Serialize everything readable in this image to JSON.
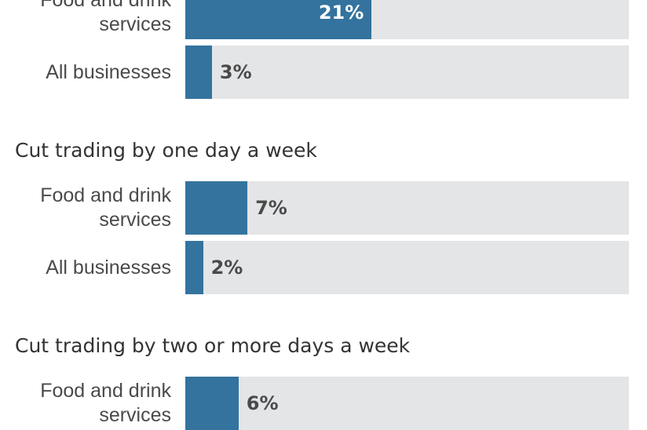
{
  "colors": {
    "bar": "#33739e",
    "track": "#e4e5e7",
    "label": "#4a4a4a",
    "value_inside": "#ffffff",
    "value_outside": "#4a4a4a"
  },
  "chart_data": {
    "type": "bar",
    "orientation": "horizontal",
    "xlim": [
      0,
      50
    ],
    "groups": [
      {
        "title": null,
        "categories": [
          "Food and drink services",
          "All businesses"
        ],
        "values": [
          21,
          3
        ],
        "labels": [
          "21%",
          "3%"
        ]
      },
      {
        "title": "Cut trading by one day a week",
        "categories": [
          "Food and drink services",
          "All businesses"
        ],
        "values": [
          7,
          2
        ],
        "labels": [
          "7%",
          "2%"
        ]
      },
      {
        "title": "Cut trading by two or more days a week",
        "categories": [
          "Food and drink services"
        ],
        "values": [
          6
        ],
        "labels": [
          "6%"
        ]
      }
    ]
  }
}
